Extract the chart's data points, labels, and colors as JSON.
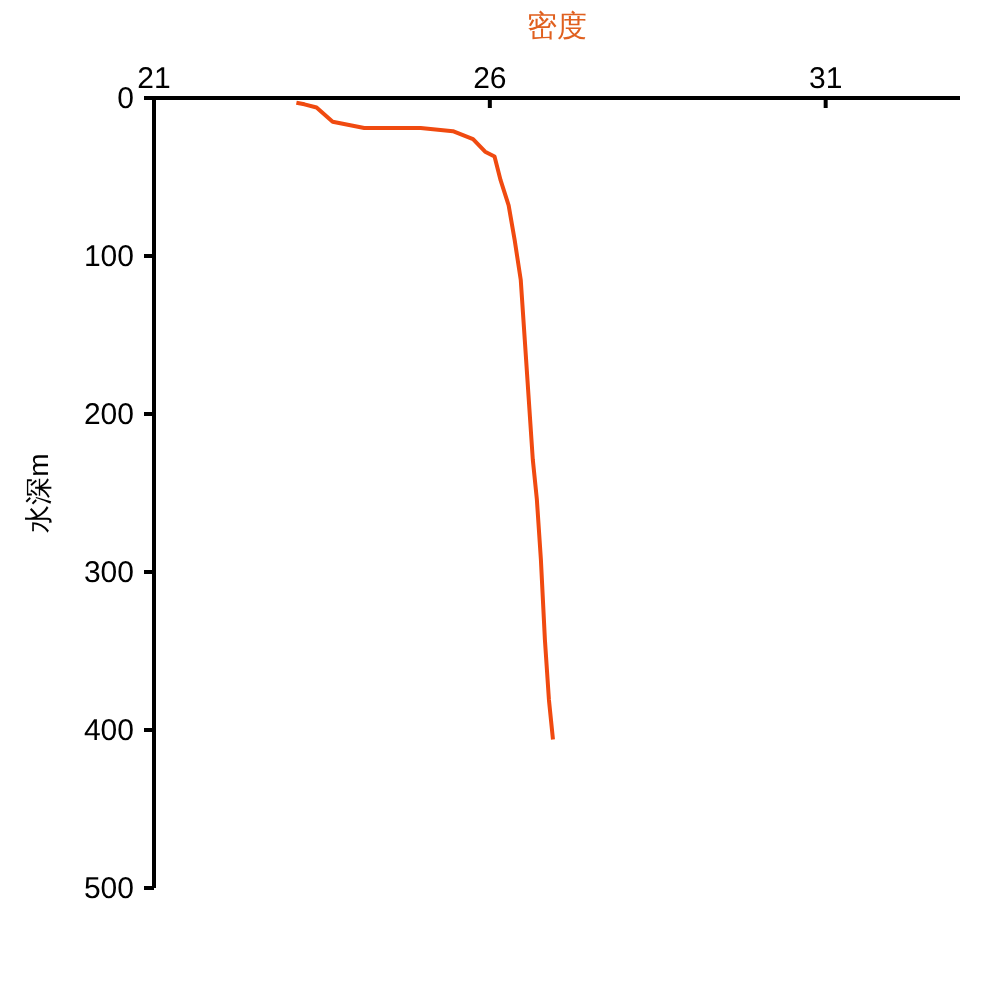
{
  "chart_data": {
    "type": "line",
    "xlabel": "密度",
    "ylabel": "水深m",
    "xlim": [
      21,
      33
    ],
    "xticks": [
      21,
      26,
      31
    ],
    "ylim": [
      500,
      0
    ],
    "yticks": [
      0,
      100,
      200,
      300,
      400,
      500
    ],
    "grid": false,
    "marker": "none",
    "line_style": "solid",
    "series": [
      {
        "color": "#f04a10",
        "x": [
          23.12,
          23.24,
          23.42,
          23.66,
          24.13,
          24.97,
          25.45,
          25.75,
          25.93,
          26.07,
          26.16,
          26.28,
          26.37,
          26.46,
          26.52,
          26.58,
          26.64,
          26.7,
          26.76,
          26.82,
          26.88,
          26.94
        ],
        "values": [
          3,
          4,
          6,
          15,
          19,
          19,
          21,
          26,
          34,
          37,
          52,
          68,
          90,
          115,
          153,
          191,
          229,
          254,
          292,
          343,
          381,
          406
        ]
      }
    ]
  }
}
